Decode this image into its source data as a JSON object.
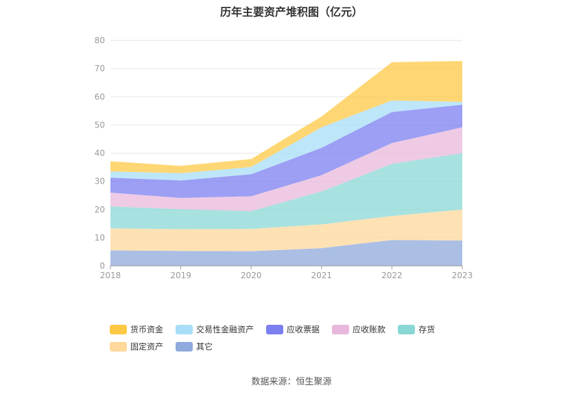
{
  "chart_data": {
    "type": "area",
    "stacked": true,
    "title": "历年主要资产堆积图（亿元）",
    "xlabel": "",
    "ylabel": "",
    "categories": [
      "2018",
      "2019",
      "2020",
      "2021",
      "2022",
      "2023"
    ],
    "ylim": [
      0,
      80
    ],
    "yticks": [
      0,
      10,
      20,
      30,
      40,
      50,
      60,
      70,
      80
    ],
    "grid": true,
    "legend_position": "bottom",
    "series": [
      {
        "name": "其它",
        "color": "#8FAADC",
        "values": [
          5.5,
          5.3,
          5.2,
          6.3,
          9.2,
          9.0
        ]
      },
      {
        "name": "固定资产",
        "color": "#FFD89B",
        "values": [
          7.8,
          7.7,
          7.9,
          8.4,
          8.5,
          11.0
        ]
      },
      {
        "name": "存货",
        "color": "#8AD8D6",
        "values": [
          7.8,
          7.1,
          6.3,
          11.7,
          18.5,
          20.0
        ]
      },
      {
        "name": "应收账款",
        "color": "#E8B8DC",
        "values": [
          4.9,
          4.0,
          5.3,
          5.8,
          7.4,
          9.2
        ]
      },
      {
        "name": "应收票据",
        "color": "#7B7FF0",
        "values": [
          5.3,
          6.2,
          7.8,
          9.7,
          11.0,
          8.0
        ]
      },
      {
        "name": "交易性金融资产",
        "color": "#A8DDF7",
        "values": [
          2.2,
          2.6,
          2.6,
          7.3,
          4.1,
          1.0
        ]
      },
      {
        "name": "货币资金",
        "color": "#FDC945",
        "values": [
          3.6,
          2.6,
          2.8,
          3.8,
          13.6,
          14.5
        ]
      }
    ]
  },
  "legend_order": [
    "货币资金",
    "交易性金融资产",
    "应收票据",
    "应收账款",
    "存货",
    "固定资产",
    "其它"
  ],
  "source_text": "数据来源：恒生聚源"
}
